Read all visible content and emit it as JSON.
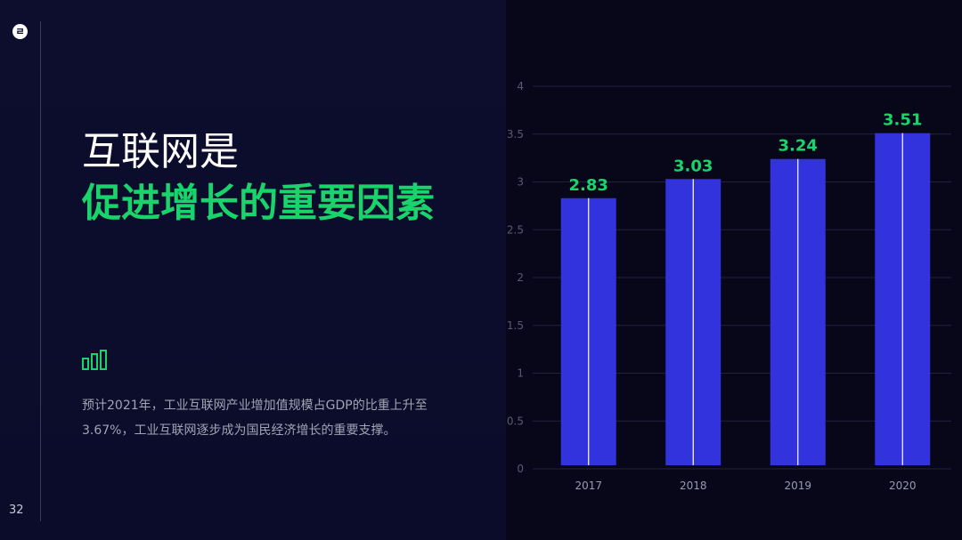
{
  "page": {
    "number": "32",
    "logo_text": "ㄹ"
  },
  "headline": {
    "line1": "互联网是",
    "line2": "促进增长的重要因素"
  },
  "description": "预计2021年，工业互联网产业增加值规模占GDP的比重上升至3.67%，工业互联网逐步成为国民经济增长的重要支撑。",
  "icons": {
    "decor": "bar-chart-icon"
  },
  "colors": {
    "accent": "#18d46a",
    "bar": "#3333dd",
    "background": "#0b0b2a"
  },
  "chart_data": {
    "type": "bar",
    "categories": [
      "2017",
      "2018",
      "2019",
      "2020"
    ],
    "values": [
      2.83,
      3.03,
      3.24,
      3.51
    ],
    "value_labels": [
      "2.83",
      "3.03",
      "3.24",
      "3.51"
    ],
    "yticks": [
      "0",
      "0.5",
      "1",
      "1.5",
      "2",
      "2.5",
      "3",
      "3.5",
      "4"
    ],
    "ylim": [
      0,
      4
    ],
    "grid": true,
    "title": "",
    "xlabel": "",
    "ylabel": ""
  }
}
